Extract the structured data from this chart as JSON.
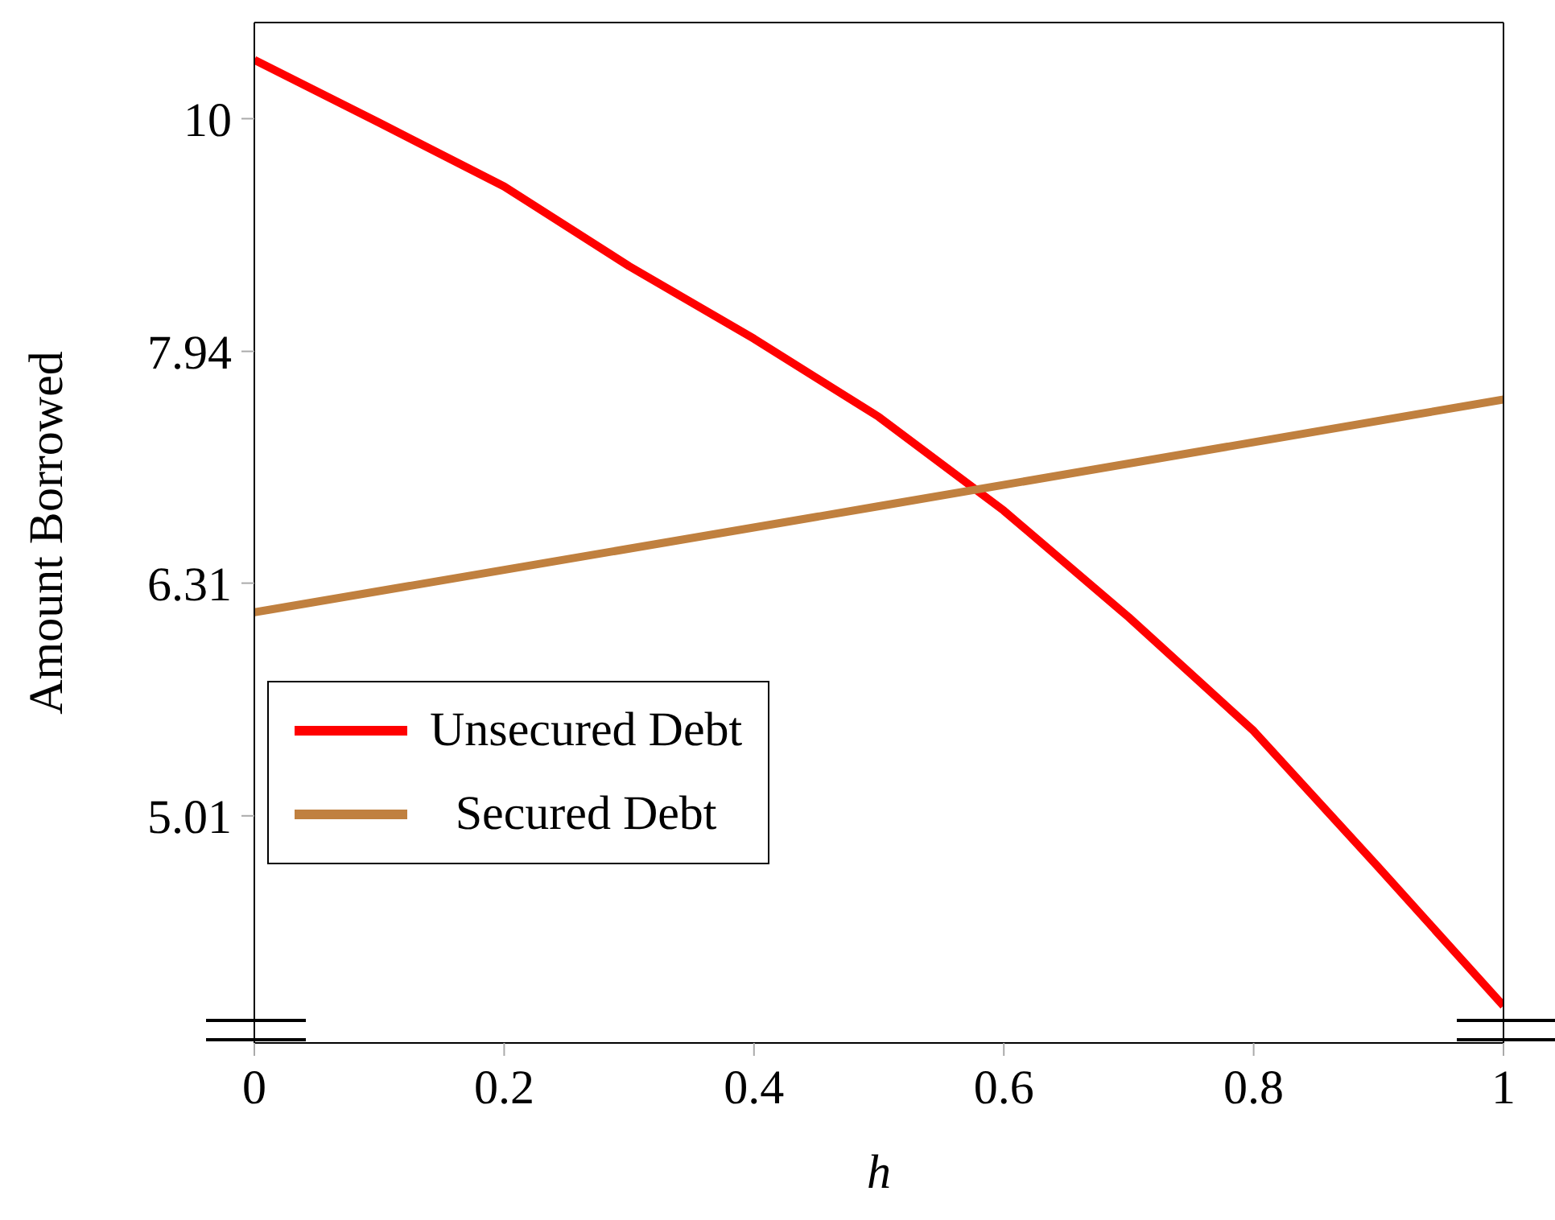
{
  "chart_data": {
    "type": "line",
    "xlabel": "h",
    "ylabel": "Amount Borrowed",
    "log": "y",
    "xlim": [
      0,
      1
    ],
    "xticks": [
      0,
      0.2,
      0.4,
      0.6,
      0.8,
      1
    ],
    "ylim": [
      4,
      11
    ],
    "yticks": [
      5.01,
      6.31,
      7.94,
      10
    ],
    "legend": "bottom left",
    "marker": "none",
    "line_style": "solid",
    "series": [
      {
        "name": "Unsecured Debt",
        "color": "#ff0000",
        "x": [
          0,
          0.1,
          0.2,
          0.3,
          0.4,
          0.5,
          0.6,
          0.7,
          0.8,
          0.9,
          1
        ],
        "values": [
          10.6,
          9.96,
          9.35,
          8.64,
          8.04,
          7.44,
          6.78,
          6.1,
          5.45,
          4.76,
          4.15
        ]
      },
      {
        "name": "Secured Debt",
        "color": "#c0803f",
        "x": [
          0,
          0.5,
          1
        ],
        "values": [
          6.13,
          6.81,
          7.57
        ]
      }
    ]
  }
}
